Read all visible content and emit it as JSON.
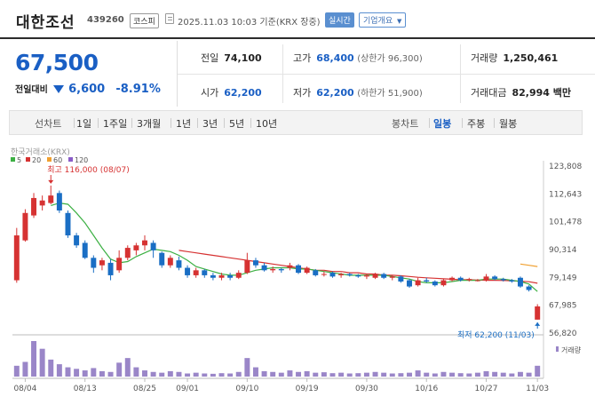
{
  "header": {
    "title": "대한조선",
    "code": "439260",
    "market": "코스피",
    "datetime": "2025.11.03 10:03 기준(KRX 장중)",
    "realtime_label": "실시간",
    "company_label": "기업개요"
  },
  "summary": {
    "price": "67,500",
    "change_label": "전일대비",
    "change_value": "6,600",
    "change_pct": "-8.91%",
    "stats": {
      "prev_label": "전일",
      "prev": "74,100",
      "high_label": "고가",
      "high": "68,400",
      "high_limit": "(상한가 96,300)",
      "volume_label": "거래량",
      "volume": "1,250,461",
      "open_label": "시가",
      "open": "62,200",
      "low_label": "저가",
      "low": "62,200",
      "low_limit": "(하한가 51,900)",
      "amount_label": "거래대금",
      "amount": "82,994 백만"
    }
  },
  "period_bar": {
    "line_chart_label": "선차트",
    "line_periods": [
      "1일",
      "1주일",
      "3개월",
      "1년",
      "3년",
      "5년",
      "10년"
    ],
    "candle_label": "봉차트",
    "candle_periods": [
      "일봉",
      "주봉",
      "월봉"
    ],
    "active_candle": "일봉"
  },
  "chart_data": {
    "type": "candlestick",
    "source_label": "한국거래소(KRX)",
    "legend": [
      {
        "name": "5",
        "color": "#3cb043"
      },
      {
        "name": "20",
        "color": "#d63232"
      },
      {
        "name": "60",
        "color": "#f0a030"
      },
      {
        "name": "120",
        "color": "#8a5cc8"
      }
    ],
    "colors": {
      "up": "#d63232",
      "down": "#1a6ec4",
      "volume": "#9a86c8"
    },
    "ylim": [
      56820,
      123808
    ],
    "y_ticks": [
      "123,808",
      "112,643",
      "101,478",
      "90,314",
      "79,149",
      "67,985",
      "56,820"
    ],
    "x_labels": [
      {
        "label": "08/04",
        "index": 1
      },
      {
        "label": "08/13",
        "index": 8
      },
      {
        "label": "08/25",
        "index": 15
      },
      {
        "label": "09/01",
        "index": 20
      },
      {
        "label": "09/10",
        "index": 27
      },
      {
        "label": "09/19",
        "index": 34
      },
      {
        "label": "09/30",
        "index": 41
      },
      {
        "label": "10/16",
        "index": 48
      },
      {
        "label": "10/27",
        "index": 55
      },
      {
        "label": "11/03",
        "index": 61
      }
    ],
    "high_annotation": "최고 116,000 (08/07)",
    "high_annotation_index": 4,
    "high_annotation_value": 116000,
    "low_annotation": "최저 62,200 (11/03)",
    "low_annotation_index": 61,
    "low_annotation_value": 62200,
    "volume_label": "거래량",
    "candles": [
      [
        78000,
        96000,
        99000,
        77000
      ],
      [
        94000,
        105000,
        106500,
        93500
      ],
      [
        104000,
        111000,
        113000,
        103000
      ],
      [
        108000,
        110000,
        112000,
        106000
      ],
      [
        109000,
        112000,
        116000,
        108500
      ],
      [
        113000,
        106000,
        114000,
        105000
      ],
      [
        105000,
        96000,
        106000,
        95000
      ],
      [
        96000,
        92000,
        97000,
        91000
      ],
      [
        93000,
        87000,
        94000,
        86500
      ],
      [
        87000,
        83000,
        88000,
        81000
      ],
      [
        84000,
        86000,
        87000,
        82000
      ],
      [
        85000,
        80000,
        86500,
        78000
      ],
      [
        82000,
        87000,
        90000,
        81000
      ],
      [
        87000,
        91000,
        92000,
        86000
      ],
      [
        90000,
        92000,
        93000,
        88000
      ],
      [
        92000,
        94000,
        96000,
        90000
      ],
      [
        93000,
        90000,
        94000,
        87000
      ],
      [
        89000,
        84000,
        89500,
        83000
      ],
      [
        84000,
        87000,
        88000,
        83000
      ],
      [
        86000,
        83000,
        87500,
        82000
      ],
      [
        83000,
        80000,
        84000,
        79000
      ],
      [
        80000,
        82000,
        83000,
        79000
      ],
      [
        82000,
        80000,
        82500,
        79000
      ],
      [
        80000,
        79000,
        81000,
        78000
      ],
      [
        79000,
        80000,
        81000,
        78000
      ],
      [
        80000,
        79000,
        81000,
        78000
      ],
      [
        79000,
        81000,
        82000,
        78500
      ],
      [
        81000,
        86000,
        89000,
        80500
      ],
      [
        86000,
        84000,
        87000,
        83000
      ],
      [
        84000,
        82000,
        85000,
        81500
      ],
      [
        82000,
        82500,
        83500,
        81000
      ],
      [
        82500,
        82000,
        83000,
        81000
      ],
      [
        83000,
        84000,
        85000,
        82000
      ],
      [
        84000,
        81000,
        84500,
        80500
      ],
      [
        81000,
        83000,
        83500,
        80500
      ],
      [
        82000,
        80000,
        82500,
        79500
      ],
      [
        80500,
        80500,
        81500,
        79500
      ],
      [
        81000,
        79500,
        81500,
        79000
      ],
      [
        80000,
        80500,
        81000,
        79000
      ],
      [
        80500,
        80000,
        81000,
        79500
      ],
      [
        80000,
        79500,
        80500,
        79000
      ],
      [
        79500,
        80000,
        80500,
        78500
      ],
      [
        79000,
        80500,
        81000,
        78500
      ],
      [
        80500,
        79000,
        81000,
        78500
      ],
      [
        79000,
        79500,
        80000,
        78000
      ],
      [
        79500,
        77500,
        80000,
        77000
      ],
      [
        78000,
        75500,
        78500,
        75000
      ],
      [
        76000,
        78000,
        79000,
        75500
      ],
      [
        78000,
        77500,
        79000,
        77000
      ],
      [
        77500,
        76000,
        78000,
        75500
      ],
      [
        76000,
        78000,
        78500,
        75500
      ],
      [
        78000,
        79000,
        79500,
        77500
      ],
      [
        79000,
        78000,
        79500,
        77500
      ],
      [
        78000,
        78500,
        79000,
        77500
      ],
      [
        78000,
        78000,
        78500,
        77500
      ],
      [
        78000,
        79500,
        80500,
        77500
      ],
      [
        79500,
        78500,
        80000,
        78000
      ],
      [
        78500,
        78000,
        79000,
        77500
      ],
      [
        78000,
        77500,
        78500,
        77000
      ],
      [
        79000,
        75500,
        79500,
        75000
      ],
      [
        75500,
        74100,
        76000,
        73500
      ],
      [
        62200,
        67500,
        68400,
        62200
      ]
    ],
    "ma5": [
      null,
      null,
      null,
      null,
      108000,
      109000,
      108500,
      105000,
      101000,
      96000,
      91000,
      86500,
      85000,
      85500,
      87500,
      89000,
      90500,
      90000,
      89500,
      88000,
      86000,
      83500,
      82500,
      81500,
      80500,
      80000,
      80000,
      81000,
      82000,
      82500,
      83000,
      83000,
      83000,
      82500,
      82500,
      82000,
      81500,
      81000,
      80500,
      80000,
      80000,
      80000,
      80000,
      80000,
      79500,
      79000,
      78500,
      77500,
      77000,
      77000,
      77000,
      77500,
      78000,
      78000,
      78000,
      78500,
      78500,
      78500,
      78000,
      77500,
      76500,
      73500
    ],
    "ma20": [
      null,
      null,
      null,
      null,
      null,
      null,
      null,
      null,
      null,
      null,
      null,
      null,
      null,
      null,
      null,
      null,
      null,
      null,
      null,
      90000,
      89500,
      89000,
      88500,
      88000,
      87500,
      87000,
      86500,
      86000,
      85500,
      85000,
      84500,
      84000,
      83500,
      83000,
      82500,
      82000,
      82000,
      81500,
      81500,
      81000,
      81000,
      80500,
      80500,
      80000,
      80000,
      79800,
      79500,
      79200,
      79000,
      78800,
      78600,
      78400,
      78200,
      78200,
      78100,
      78000,
      78000,
      77900,
      77800,
      77600,
      77400,
      76800
    ],
    "ma60": [
      null,
      null,
      null,
      null,
      null,
      null,
      null,
      null,
      null,
      null,
      null,
      null,
      null,
      null,
      null,
      null,
      null,
      null,
      null,
      null,
      null,
      null,
      null,
      null,
      null,
      null,
      null,
      null,
      null,
      null,
      null,
      null,
      null,
      null,
      null,
      null,
      null,
      null,
      null,
      null,
      null,
      null,
      null,
      null,
      null,
      null,
      null,
      null,
      null,
      null,
      null,
      null,
      null,
      null,
      null,
      null,
      null,
      null,
      null,
      84500,
      84000,
      83500
    ],
    "volumes": [
      70,
      95,
      230,
      180,
      110,
      80,
      60,
      50,
      40,
      55,
      35,
      30,
      90,
      120,
      60,
      40,
      30,
      25,
      35,
      30,
      20,
      25,
      20,
      18,
      22,
      20,
      30,
      120,
      60,
      35,
      30,
      25,
      40,
      30,
      35,
      25,
      28,
      22,
      25,
      20,
      22,
      25,
      30,
      25,
      20,
      22,
      25,
      40,
      25,
      20,
      30,
      25,
      22,
      20,
      25,
      35,
      30,
      25,
      20,
      30,
      25,
      70
    ]
  }
}
